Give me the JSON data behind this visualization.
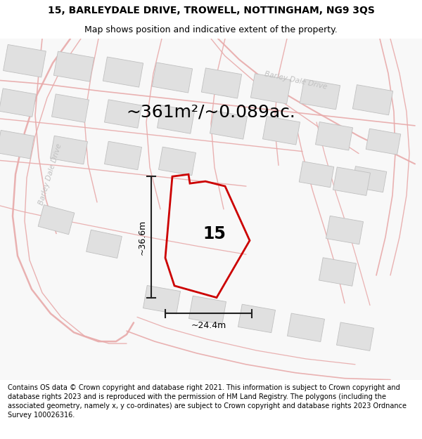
{
  "title_line1": "15, BARLEYDALE DRIVE, TROWELL, NOTTINGHAM, NG9 3QS",
  "title_line2": "Map shows position and indicative extent of the property.",
  "area_text": "~361m²/~0.089ac.",
  "property_number": "15",
  "dim_width": "~24.4m",
  "dim_height": "~36.6m",
  "footer_text": "Contains OS data © Crown copyright and database right 2021. This information is subject to Crown copyright and database rights 2023 and is reproduced with the permission of HM Land Registry. The polygons (including the associated geometry, namely x, y co-ordinates) are subject to Crown copyright and database rights 2023 Ordnance Survey 100026316.",
  "map_bg": "#f5f5f5",
  "road_color": "#e8aaaa",
  "block_fill": "#e0e0e0",
  "block_edge": "#c0c0c0",
  "property_outline_color": "#cc0000",
  "dim_line_color": "#222222",
  "street_label_color": "#c0c0c0",
  "title_fontsize": 10,
  "subtitle_fontsize": 9,
  "area_fontsize": 18,
  "footer_fontsize": 7.0
}
